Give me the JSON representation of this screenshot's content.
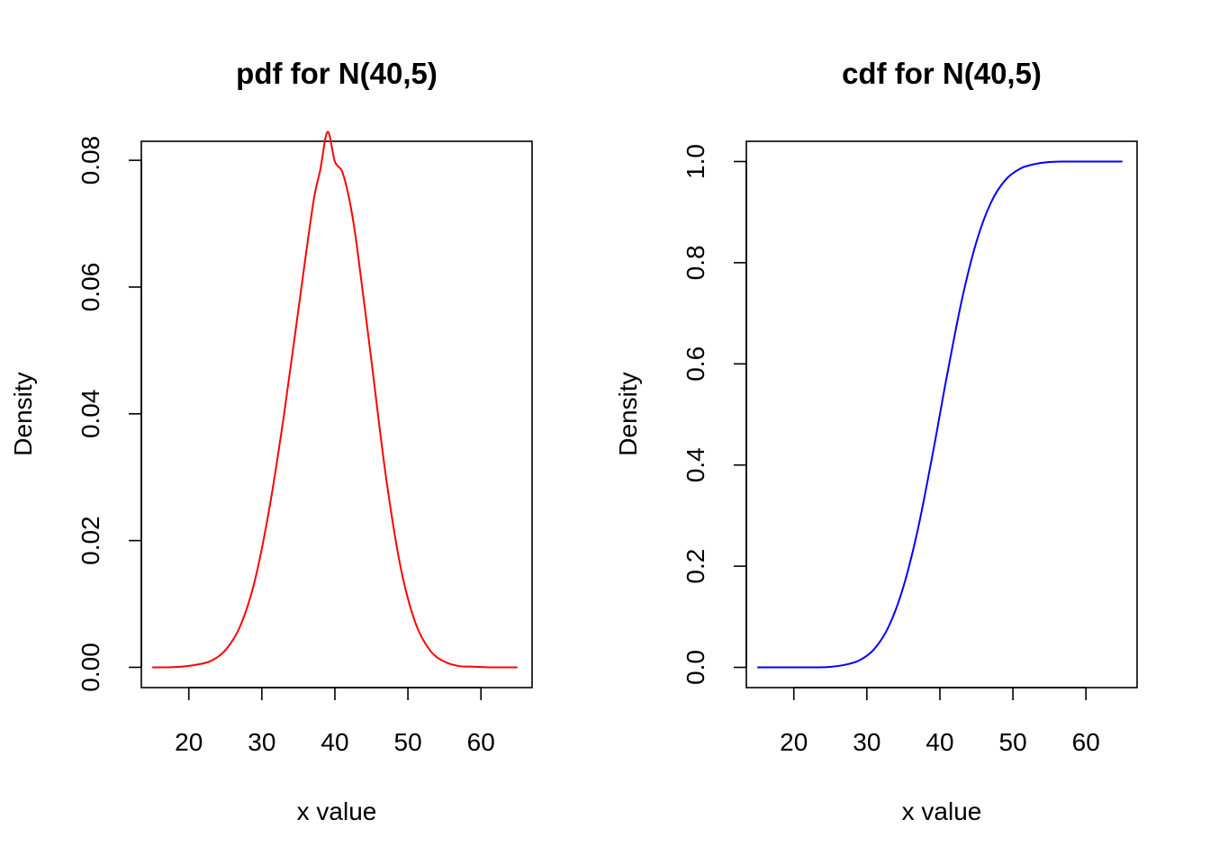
{
  "chart_data": [
    {
      "type": "line",
      "title": "pdf for N(40,5)",
      "xlabel": "x value",
      "ylabel": "Density",
      "xlim": [
        13.5,
        67.0
      ],
      "ylim": [
        -0.0032,
        0.083
      ],
      "xticks": [
        20,
        30,
        40,
        50,
        60
      ],
      "xtick_labels": [
        "20",
        "30",
        "40",
        "50",
        "60"
      ],
      "yticks": [
        0.0,
        0.02,
        0.04,
        0.06,
        0.08
      ],
      "ytick_labels": [
        "0.00",
        "0.02",
        "0.04",
        "0.06",
        "0.08"
      ],
      "grid": false,
      "series": [
        {
          "color": "#ff0000",
          "x": [
            15,
            17,
            19,
            21,
            23,
            25,
            27,
            29,
            31,
            33,
            35,
            37,
            38,
            39,
            40,
            41,
            42,
            43,
            45,
            47,
            49,
            51,
            53,
            55,
            57,
            59,
            61,
            63,
            65
          ],
          "y": [
            0.0,
            0.0,
            0.0001,
            0.0004,
            0.001,
            0.0027,
            0.0064,
            0.0135,
            0.0249,
            0.0396,
            0.0564,
            0.073,
            0.0785,
            0.0845,
            0.0798,
            0.0782,
            0.0737,
            0.0666,
            0.0484,
            0.03,
            0.0158,
            0.0071,
            0.0027,
            0.0009,
            0.0002,
            0.0001,
            0.0,
            0.0,
            0.0
          ]
        }
      ]
    },
    {
      "type": "line",
      "title": "cdf for N(40,5)",
      "xlabel": "x value",
      "ylabel": "Density",
      "xlim": [
        13.5,
        67.0
      ],
      "ylim": [
        -0.04,
        1.04
      ],
      "xticks": [
        20,
        30,
        40,
        50,
        60
      ],
      "xtick_labels": [
        "20",
        "30",
        "40",
        "50",
        "60"
      ],
      "yticks": [
        0.0,
        0.2,
        0.4,
        0.6,
        0.8,
        1.0
      ],
      "ytick_labels": [
        "0.0",
        "0.2",
        "0.4",
        "0.6",
        "0.8",
        "1.0"
      ],
      "grid": false,
      "series": [
        {
          "color": "#0000ff",
          "x": [
            15,
            17,
            19,
            21,
            23,
            25,
            27,
            29,
            31,
            33,
            35,
            37,
            39,
            40,
            41,
            43,
            45,
            47,
            49,
            51,
            53,
            55,
            57,
            59,
            61,
            63,
            65
          ],
          "y": [
            0.0,
            0.0,
            0.0,
            0.0,
            0.0,
            0.001,
            0.005,
            0.014,
            0.036,
            0.081,
            0.159,
            0.274,
            0.421,
            0.5,
            0.579,
            0.726,
            0.841,
            0.919,
            0.964,
            0.986,
            0.995,
            0.999,
            1.0,
            1.0,
            1.0,
            1.0,
            1.0
          ]
        }
      ]
    }
  ]
}
